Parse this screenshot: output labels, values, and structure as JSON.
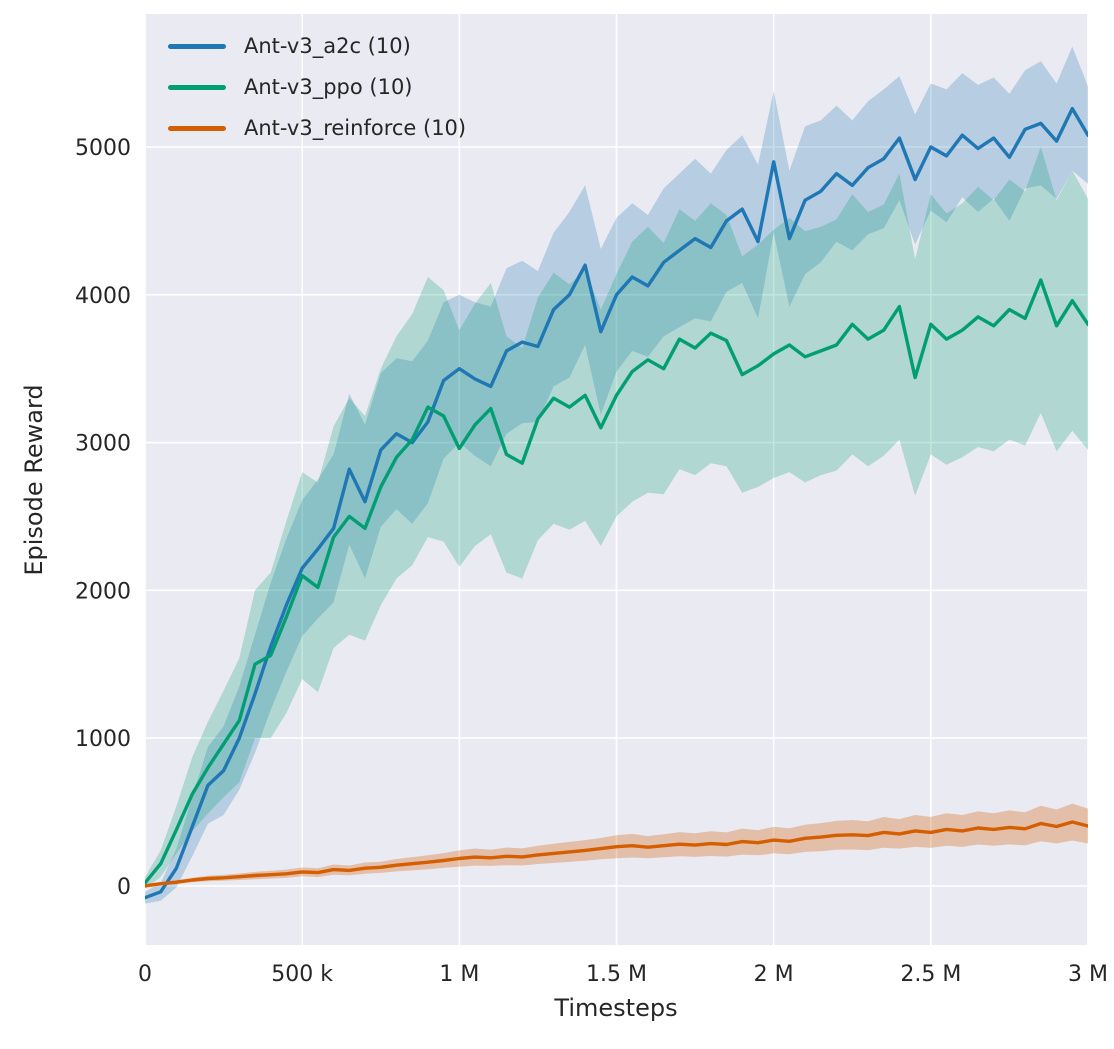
{
  "figure": {
    "bg": "#ffffff",
    "plot_bg": "#eaeaf2",
    "grid_color": "#ffffff",
    "tick_color": "#262626"
  },
  "chart_data": {
    "type": "line",
    "title": "",
    "xlabel": "Timesteps",
    "ylabel": "Episode Reward",
    "xlim": [
      0,
      3000000
    ],
    "ylim": [
      -400,
      5900
    ],
    "grid": true,
    "legend_position": "upper left",
    "xticks": {
      "values": [
        0,
        500000,
        1000000,
        1500000,
        2000000,
        2500000,
        3000000
      ],
      "labels": [
        "0",
        "500 k",
        "1 M",
        "1.5 M",
        "2 M",
        "2.5 M",
        "3 M"
      ]
    },
    "yticks": {
      "values": [
        0,
        1000,
        2000,
        3000,
        4000,
        5000
      ],
      "labels": [
        "0",
        "1000",
        "2000",
        "3000",
        "4000",
        "5000"
      ]
    },
    "x": [
      0,
      50000,
      100000,
      150000,
      200000,
      250000,
      300000,
      350000,
      400000,
      450000,
      500000,
      550000,
      600000,
      650000,
      700000,
      750000,
      800000,
      850000,
      900000,
      950000,
      1000000,
      1050000,
      1100000,
      1150000,
      1200000,
      1250000,
      1300000,
      1350000,
      1400000,
      1450000,
      1500000,
      1550000,
      1600000,
      1650000,
      1700000,
      1750000,
      1800000,
      1850000,
      1900000,
      1950000,
      2000000,
      2050000,
      2100000,
      2150000,
      2200000,
      2250000,
      2300000,
      2350000,
      2400000,
      2450000,
      2500000,
      2550000,
      2600000,
      2650000,
      2700000,
      2750000,
      2800000,
      2850000,
      2900000,
      2950000,
      3000000
    ],
    "series": [
      {
        "name": "Ant-v3_a2c (10)",
        "color": "#1f77b4",
        "band_alpha": 0.25,
        "values": [
          -80,
          -40,
          120,
          400,
          680,
          780,
          1000,
          1300,
          1620,
          1900,
          2150,
          2280,
          2420,
          2820,
          2600,
          2950,
          3060,
          3000,
          3140,
          3420,
          3500,
          3430,
          3380,
          3620,
          3680,
          3650,
          3900,
          4000,
          4200,
          3750,
          4000,
          4120,
          4060,
          4220,
          4300,
          4380,
          4320,
          4500,
          4580,
          4360,
          4900,
          4380,
          4640,
          4700,
          4820,
          4740,
          4860,
          4920,
          5060,
          4780,
          5000,
          4940,
          5080,
          4990,
          5060,
          4930,
          5120,
          5160,
          5040,
          5260,
          5080
        ],
        "spread": [
          40,
          60,
          130,
          200,
          260,
          300,
          350,
          400,
          430,
          450,
          460,
          470,
          500,
          510,
          520,
          520,
          510,
          550,
          550,
          530,
          500,
          520,
          540,
          560,
          550,
          510,
          520,
          560,
          540,
          560,
          520,
          500,
          480,
          500,
          520,
          540,
          500,
          480,
          500,
          520,
          480,
          460,
          500,
          480,
          460,
          440,
          450,
          470,
          420,
          440,
          430,
          450,
          420,
          430,
          410,
          430,
          400,
          420,
          390,
          420,
          330
        ]
      },
      {
        "name": "Ant-v3_ppo (10)",
        "color": "#029e73",
        "band_alpha": 0.25,
        "values": [
          20,
          150,
          380,
          620,
          800,
          960,
          1120,
          1500,
          1560,
          1820,
          2100,
          2020,
          2360,
          2500,
          2420,
          2700,
          2900,
          3020,
          3240,
          3180,
          2960,
          3120,
          3230,
          2920,
          2860,
          3160,
          3300,
          3240,
          3320,
          3100,
          3320,
          3480,
          3560,
          3500,
          3700,
          3640,
          3740,
          3690,
          3460,
          3520,
          3600,
          3660,
          3580,
          3620,
          3660,
          3800,
          3700,
          3760,
          3920,
          3440,
          3800,
          3700,
          3760,
          3850,
          3790,
          3900,
          3840,
          4100,
          3790,
          3960,
          3800
        ],
        "spread": [
          40,
          90,
          160,
          250,
          310,
          360,
          420,
          500,
          560,
          650,
          700,
          710,
          750,
          800,
          760,
          800,
          820,
          850,
          880,
          850,
          800,
          820,
          850,
          800,
          780,
          820,
          850,
          830,
          850,
          800,
          820,
          880,
          900,
          850,
          880,
          860,
          880,
          850,
          800,
          820,
          840,
          860,
          850,
          840,
          850,
          880,
          860,
          850,
          900,
          800,
          880,
          850,
          860,
          880,
          850,
          880,
          860,
          900,
          850,
          880,
          850
        ]
      },
      {
        "name": "Ant-v3_reinforce (10)",
        "color": "#d55e00",
        "band_alpha": 0.3,
        "values": [
          0,
          15,
          25,
          40,
          50,
          55,
          62,
          70,
          76,
          82,
          95,
          90,
          110,
          105,
          120,
          126,
          140,
          150,
          160,
          172,
          185,
          195,
          190,
          200,
          196,
          210,
          220,
          230,
          240,
          252,
          265,
          272,
          262,
          272,
          282,
          276,
          286,
          280,
          300,
          292,
          310,
          302,
          322,
          330,
          342,
          346,
          340,
          362,
          352,
          372,
          362,
          382,
          372,
          392,
          382,
          396,
          386,
          422,
          402,
          432,
          405
        ],
        "spread": [
          8,
          10,
          12,
          15,
          18,
          20,
          22,
          25,
          26,
          28,
          30,
          30,
          35,
          33,
          38,
          38,
          42,
          45,
          48,
          50,
          55,
          58,
          55,
          60,
          58,
          62,
          65,
          68,
          70,
          72,
          78,
          80,
          75,
          78,
          82,
          80,
          84,
          82,
          88,
          85,
          90,
          88,
          92,
          95,
          98,
          100,
          98,
          104,
          100,
          108,
          105,
          110,
          108,
          112,
          110,
          115,
          112,
          120,
          115,
          125,
          118
        ]
      }
    ]
  }
}
